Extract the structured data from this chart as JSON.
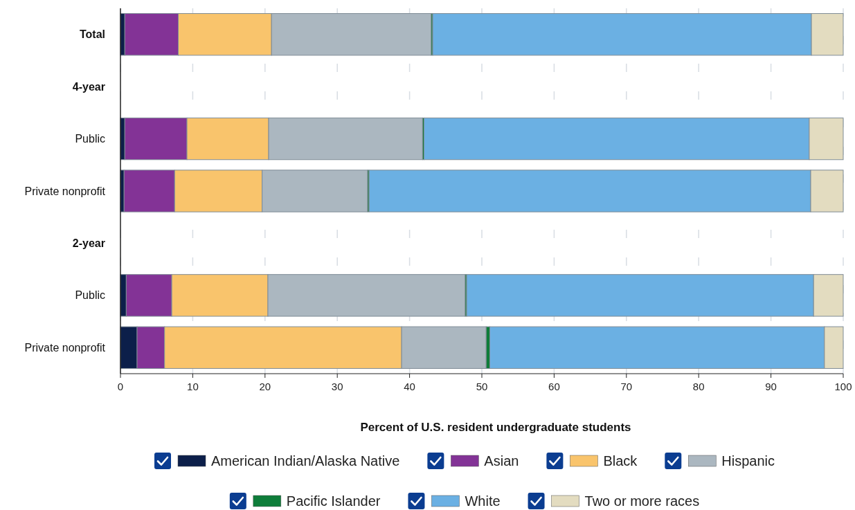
{
  "chart_data": {
    "type": "bar",
    "orientation": "horizontal",
    "stacked": true,
    "xlabel": "Percent of U.S. resident undergraduate students",
    "categories": [
      "Total",
      "4-year",
      "Public",
      "Private nonprofit",
      "2-year",
      "Public",
      "Private nonprofit"
    ],
    "series": [
      {
        "name": "American Indian/Alaska Native",
        "color": "#0c1f4a",
        "values": [
          0.6,
          null,
          0.6,
          0.5,
          null,
          0.8,
          2.3
        ]
      },
      {
        "name": "Asian",
        "color": "#833396",
        "values": [
          7.4,
          null,
          8.6,
          7.0,
          null,
          6.3,
          3.8
        ]
      },
      {
        "name": "Black",
        "color": "#f9c46c",
        "values": [
          12.9,
          null,
          11.3,
          12.1,
          null,
          13.3,
          32.8
        ]
      },
      {
        "name": "Hispanic",
        "color": "#abb7c0",
        "values": [
          22.1,
          null,
          21.3,
          14.6,
          null,
          27.3,
          11.7
        ]
      },
      {
        "name": "Pacific Islander",
        "color": "#0e7d3a",
        "values": [
          0.2,
          null,
          0.2,
          0.2,
          null,
          0.2,
          0.5
        ]
      },
      {
        "name": "White",
        "color": "#6bb0e3",
        "values": [
          52.4,
          null,
          53.3,
          61.1,
          null,
          48.0,
          46.3
        ]
      },
      {
        "name": "Two or more races",
        "color": "#e3dcc0",
        "values": [
          4.4,
          null,
          4.7,
          4.5,
          null,
          4.1,
          2.6
        ]
      }
    ],
    "xlim": [
      0,
      100
    ],
    "xticks": [
      0,
      10,
      20,
      30,
      40,
      50,
      60,
      70,
      80,
      90,
      100
    ],
    "grid": "x",
    "legend": "bottom"
  }
}
